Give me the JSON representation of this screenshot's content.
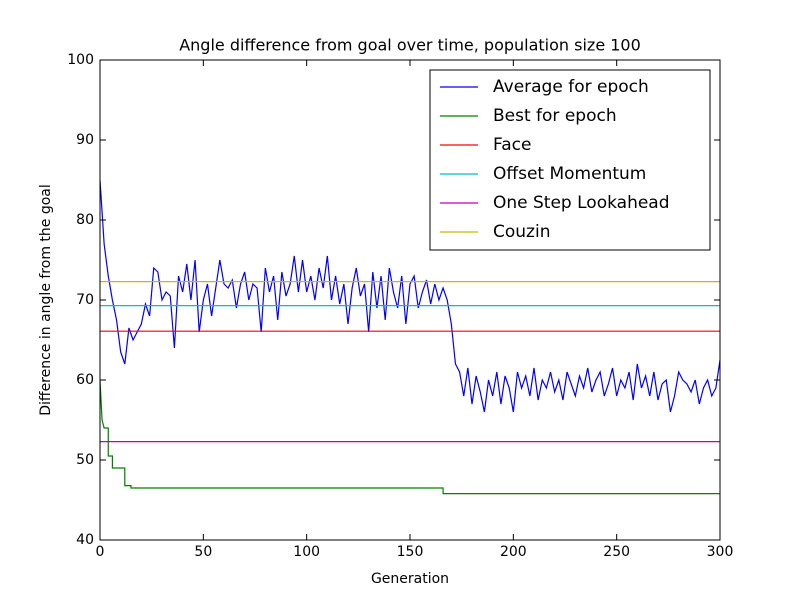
{
  "chart_data": {
    "type": "line",
    "title": "Angle difference from goal over time, population size 100",
    "x_label": "Generation",
    "y_label": "Difference in angle from the goal",
    "xlim": [
      0,
      300
    ],
    "xticks": [
      0,
      50,
      100,
      150,
      200,
      250,
      300
    ],
    "ylim": [
      40,
      100
    ],
    "yticks": [
      40,
      50,
      60,
      70,
      80,
      90,
      100
    ],
    "legend": "upper right",
    "series": [
      {
        "name": "Average for epoch",
        "color": "#0000ff",
        "x": [
          0,
          2,
          4,
          6,
          8,
          10,
          12,
          14,
          16,
          18,
          20,
          22,
          24,
          26,
          28,
          30,
          32,
          34,
          36,
          38,
          40,
          42,
          44,
          46,
          48,
          50,
          52,
          54,
          56,
          58,
          60,
          62,
          64,
          66,
          68,
          70,
          72,
          74,
          76,
          78,
          80,
          82,
          84,
          86,
          88,
          90,
          92,
          94,
          96,
          98,
          100,
          102,
          104,
          106,
          108,
          110,
          112,
          114,
          116,
          118,
          120,
          122,
          124,
          126,
          128,
          130,
          132,
          134,
          136,
          138,
          140,
          142,
          144,
          146,
          148,
          150,
          152,
          154,
          156,
          158,
          160,
          162,
          164,
          166,
          168,
          170,
          172,
          174,
          176,
          178,
          180,
          182,
          184,
          186,
          188,
          190,
          192,
          194,
          196,
          198,
          200,
          202,
          204,
          206,
          208,
          210,
          212,
          214,
          216,
          218,
          220,
          222,
          224,
          226,
          228,
          230,
          232,
          234,
          236,
          238,
          240,
          242,
          244,
          246,
          248,
          250,
          252,
          254,
          256,
          258,
          260,
          262,
          264,
          266,
          268,
          270,
          272,
          274,
          276,
          278,
          280,
          282,
          284,
          286,
          288,
          290,
          292,
          294,
          296,
          298,
          300
        ],
        "values": [
          85,
          77,
          73,
          70,
          67.5,
          63.5,
          62,
          66.5,
          65,
          66,
          67,
          69.5,
          68,
          74,
          73.5,
          70,
          71,
          70.5,
          64,
          73,
          71,
          74.5,
          70,
          75,
          66,
          70,
          72,
          68,
          71.5,
          75,
          72,
          71.5,
          72.5,
          69,
          72,
          73.5,
          70,
          72,
          71.5,
          66,
          74,
          71,
          73,
          67.5,
          73.5,
          70.5,
          72,
          75.5,
          71,
          75,
          71,
          73,
          70,
          74,
          71.5,
          75.5,
          70,
          73,
          69.5,
          72,
          67,
          71.5,
          74,
          70.5,
          72,
          66,
          73.5,
          69,
          73,
          67.5,
          74,
          71,
          69,
          73,
          67,
          72,
          73,
          69,
          71,
          72.5,
          69.5,
          72,
          70,
          71.5,
          70,
          67,
          62,
          61,
          58,
          61.5,
          57,
          60.5,
          58.5,
          56,
          60,
          58,
          61,
          57,
          60.5,
          59,
          56,
          61,
          59,
          60.5,
          58,
          61.5,
          57.5,
          60,
          59,
          61,
          58.5,
          60,
          57.5,
          61,
          59.5,
          58,
          60.5,
          59,
          61.5,
          58.5,
          60,
          61,
          58,
          59.5,
          61.5,
          58,
          60,
          59,
          61,
          57.5,
          62,
          59,
          60.5,
          58,
          61,
          57.5,
          59.5,
          60,
          56,
          58,
          61,
          60,
          59.5,
          58.5,
          60,
          57,
          59,
          60,
          58,
          59,
          62.5
        ]
      },
      {
        "name": "Best for epoch",
        "color": "#008000",
        "x": [
          0,
          1,
          2,
          4,
          4,
          6,
          6,
          12,
          12,
          15,
          15,
          166,
          166,
          300
        ],
        "values": [
          60,
          55,
          54,
          54,
          50.5,
          50.5,
          49,
          49,
          46.8,
          46.8,
          46.5,
          46.5,
          45.8,
          45.8
        ]
      },
      {
        "name": "Face",
        "color": "#ff0000",
        "x": [
          0,
          300
        ],
        "values": [
          66.1,
          66.1
        ]
      },
      {
        "name": "Offset Momentum",
        "color": "#00bfbf",
        "x": [
          0,
          300
        ],
        "values": [
          69.3,
          69.3
        ]
      },
      {
        "name": "One Step Lookahead",
        "color": "#bf00bf",
        "x": [
          0,
          300
        ],
        "values": [
          52.3,
          52.3
        ]
      },
      {
        "name": "Couzin",
        "color": "#bfbf00",
        "x": [
          0,
          300
        ],
        "values": [
          72.3,
          72.3
        ]
      }
    ]
  }
}
